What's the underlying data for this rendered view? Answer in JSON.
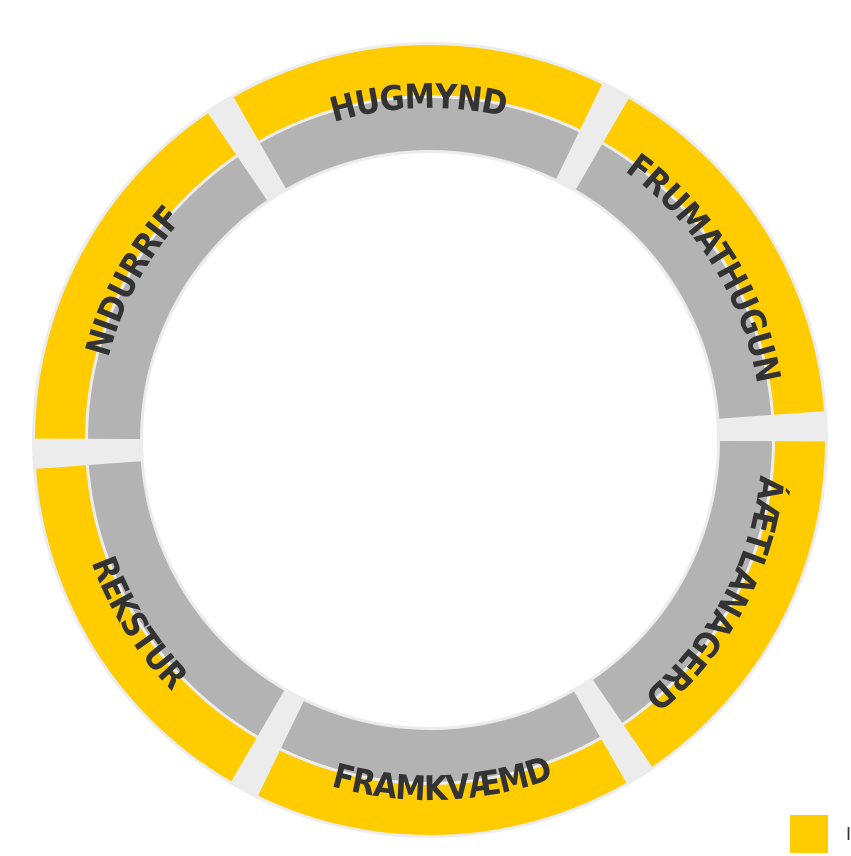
{
  "segments": [
    "HUGMYND",
    "FRUMATHUGUN",
    "ÁÆTLANAGERD",
    "FRAMKVÆMD",
    "REKSTUR",
    "NIDURRIF"
  ],
  "legend": {
    "label": "I"
  }
}
